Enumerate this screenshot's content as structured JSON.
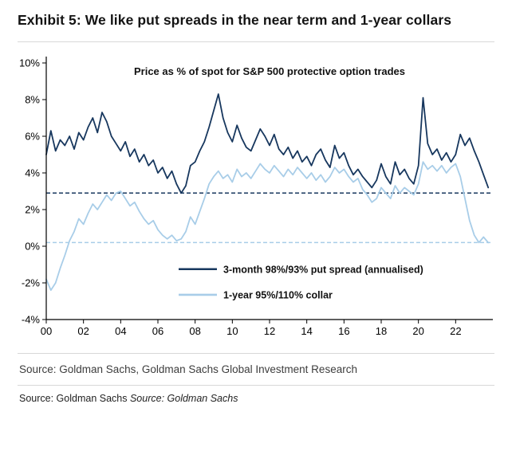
{
  "page": {
    "exhibit_title": "Exhibit 5: We like put spreads in the near term and 1-year collars",
    "source_line": "Source: Goldman Sachs, Goldman Sachs Global Investment Research",
    "footer_source_normal": "Source: Goldman Sachs ",
    "footer_source_italic": "Source: Goldman Sachs"
  },
  "chart_data": {
    "type": "line",
    "title": "Price as % of spot for S&P 500 protective option trades",
    "xlabel": "",
    "ylabel": "",
    "xlim": [
      2000,
      2024
    ],
    "ylim": [
      -4,
      10
    ],
    "grid": false,
    "legend_position": "inside-bottom-center",
    "x_ticks": [
      2000,
      2002,
      2004,
      2006,
      2008,
      2010,
      2012,
      2014,
      2016,
      2018,
      2020,
      2022
    ],
    "x_tick_labels": [
      "00",
      "02",
      "04",
      "06",
      "08",
      "10",
      "12",
      "14",
      "16",
      "18",
      "20",
      "22"
    ],
    "y_ticks": [
      10,
      8,
      6,
      4,
      2,
      0,
      -2,
      -4
    ],
    "y_tick_labels": [
      "10%",
      "8%",
      "6%",
      "4%",
      "2%",
      "0%",
      "-2%",
      "-4%"
    ],
    "x": [
      2000,
      2000.25,
      2000.5,
      2000.75,
      2001,
      2001.25,
      2001.5,
      2001.75,
      2002,
      2002.25,
      2002.5,
      2002.75,
      2003,
      2003.25,
      2003.5,
      2003.75,
      2004,
      2004.25,
      2004.5,
      2004.75,
      2005,
      2005.25,
      2005.5,
      2005.75,
      2006,
      2006.25,
      2006.5,
      2006.75,
      2007,
      2007.25,
      2007.5,
      2007.75,
      2008,
      2008.25,
      2008.5,
      2008.75,
      2009,
      2009.25,
      2009.5,
      2009.75,
      2010,
      2010.25,
      2010.5,
      2010.75,
      2011,
      2011.25,
      2011.5,
      2011.75,
      2012,
      2012.25,
      2012.5,
      2012.75,
      2013,
      2013.25,
      2013.5,
      2013.75,
      2014,
      2014.25,
      2014.5,
      2014.75,
      2015,
      2015.25,
      2015.5,
      2015.75,
      2016,
      2016.25,
      2016.5,
      2016.75,
      2017,
      2017.25,
      2017.5,
      2017.75,
      2018,
      2018.25,
      2018.5,
      2018.75,
      2019,
      2019.25,
      2019.5,
      2019.75,
      2020,
      2020.25,
      2020.5,
      2020.75,
      2021,
      2021.25,
      2021.5,
      2021.75,
      2022,
      2022.25,
      2022.5,
      2022.75,
      2023,
      2023.25,
      2023.5,
      2023.75
    ],
    "series": [
      {
        "name": "3-month 98%/93% put spread (annualised)",
        "color": "#17375e",
        "ref_line": 2.9,
        "values": [
          5.0,
          6.3,
          5.2,
          5.8,
          5.5,
          6.0,
          5.3,
          6.2,
          5.8,
          6.5,
          7.0,
          6.2,
          7.3,
          6.8,
          6.0,
          5.6,
          5.2,
          5.7,
          4.9,
          5.3,
          4.6,
          5.0,
          4.4,
          4.7,
          4.0,
          4.3,
          3.7,
          4.1,
          3.4,
          2.9,
          3.3,
          4.4,
          4.6,
          5.2,
          5.7,
          6.5,
          7.4,
          8.3,
          7.0,
          6.2,
          5.7,
          6.6,
          5.9,
          5.4,
          5.2,
          5.8,
          6.4,
          6.0,
          5.5,
          6.1,
          5.3,
          5.0,
          5.4,
          4.8,
          5.2,
          4.6,
          4.9,
          4.4,
          5.0,
          5.3,
          4.7,
          4.3,
          5.5,
          4.8,
          5.1,
          4.4,
          3.9,
          4.2,
          3.8,
          3.5,
          3.2,
          3.6,
          4.5,
          3.8,
          3.4,
          4.6,
          3.9,
          4.2,
          3.7,
          3.4,
          4.4,
          8.1,
          5.6,
          5.0,
          5.3,
          4.7,
          5.1,
          4.6,
          5.0,
          6.1,
          5.5,
          5.9,
          5.2,
          4.6,
          3.9,
          3.2
        ]
      },
      {
        "name": "1-year 95%/110% collar",
        "color": "#a8cde8",
        "ref_line": 0.2,
        "values": [
          -1.8,
          -2.4,
          -2.0,
          -1.2,
          -0.5,
          0.3,
          0.8,
          1.5,
          1.2,
          1.8,
          2.3,
          2.0,
          2.4,
          2.8,
          2.5,
          2.9,
          3.0,
          2.6,
          2.2,
          2.4,
          1.9,
          1.5,
          1.2,
          1.4,
          0.9,
          0.6,
          0.4,
          0.6,
          0.3,
          0.4,
          0.8,
          1.6,
          1.2,
          1.9,
          2.6,
          3.4,
          3.8,
          4.1,
          3.7,
          3.9,
          3.5,
          4.2,
          3.8,
          4.0,
          3.7,
          4.1,
          4.5,
          4.2,
          4.0,
          4.4,
          4.1,
          3.8,
          4.2,
          3.9,
          4.3,
          4.0,
          3.7,
          4.0,
          3.6,
          3.9,
          3.5,
          3.8,
          4.3,
          4.0,
          4.2,
          3.8,
          3.5,
          3.7,
          3.1,
          2.8,
          2.4,
          2.6,
          3.2,
          2.9,
          2.6,
          3.3,
          2.9,
          3.2,
          3.0,
          2.8,
          3.4,
          4.6,
          4.2,
          4.4,
          4.1,
          4.4,
          4.0,
          4.3,
          4.5,
          3.8,
          2.6,
          1.4,
          0.6,
          0.2,
          0.5,
          0.2
        ]
      }
    ]
  }
}
